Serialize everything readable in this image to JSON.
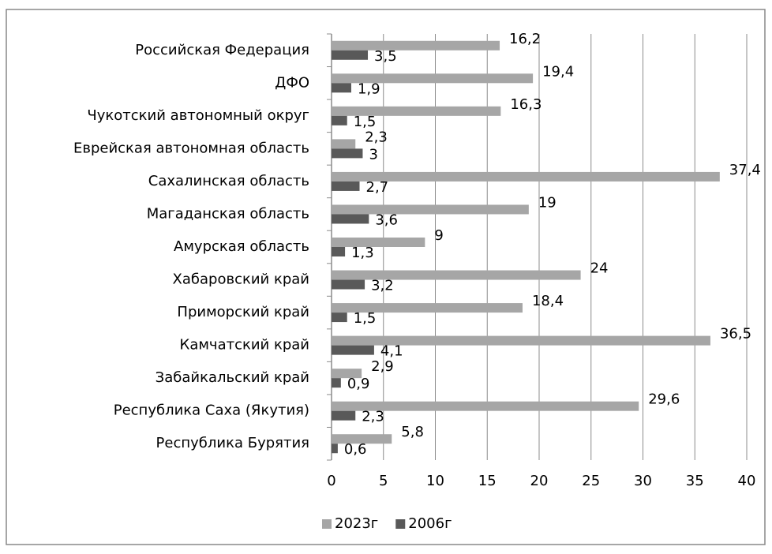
{
  "chart_data": {
    "type": "bar",
    "orientation": "horizontal",
    "categories": [
      "Российская Федерация",
      "ДФО",
      "Чукотский автономный округ",
      "Еврейская автономная область",
      "Сахалинская область",
      "Магаданская область",
      "Амурская область",
      "Хабаровский край",
      "Приморский край",
      "Камчатский край",
      "Забайкальский край",
      "Республика Саха (Якутия)",
      "Республика Бурятия"
    ],
    "series": [
      {
        "name": "2023г",
        "color": "#a6a6a6",
        "values": [
          16.2,
          19.4,
          16.3,
          2.3,
          37.4,
          19,
          9,
          24,
          18.4,
          36.5,
          2.9,
          29.6,
          5.8
        ],
        "value_labels": [
          "16,2",
          "19,4",
          "16,3",
          "2,3",
          "37,4",
          "19",
          "9",
          "24",
          "18,4",
          "36,5",
          "2,9",
          "29,6",
          "5,8"
        ]
      },
      {
        "name": "2006г",
        "color": "#595959",
        "values": [
          3.5,
          1.9,
          1.5,
          3,
          2.7,
          3.6,
          1.3,
          3.2,
          1.5,
          4.1,
          0.9,
          2.3,
          0.6
        ],
        "value_labels": [
          "3,5",
          "1,9",
          "1,5",
          "3",
          "2,7",
          "3,6",
          "1,3",
          "3,2",
          "1,5",
          "4,1",
          "0,9",
          "2,3",
          "0,6"
        ]
      }
    ],
    "xlim": [
      0,
      40
    ],
    "xticks": [
      0,
      5,
      10,
      15,
      20,
      25,
      30,
      35,
      40
    ],
    "grid": true,
    "legend": "bottom"
  }
}
